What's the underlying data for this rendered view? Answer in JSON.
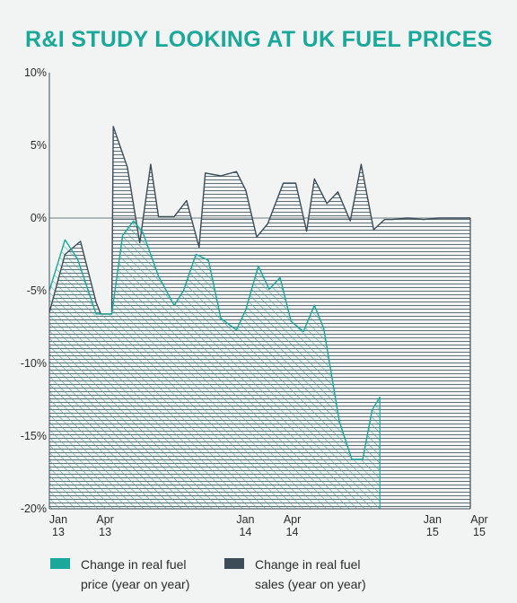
{
  "chart_data": {
    "type": "area",
    "title": "R&I STUDY LOOKING AT UK FUEL PRICES",
    "xlabel": "",
    "ylabel": "",
    "ylim": [
      -20,
      10
    ],
    "y_ticks": [
      10,
      5,
      0,
      -5,
      -10,
      -15,
      -20
    ],
    "y_tick_labels": [
      "10%",
      "5%",
      "0%",
      "-5%",
      "-10%",
      "-15%",
      "-20%"
    ],
    "x_ticks": [
      {
        "index": 0,
        "line1": "Jan",
        "line2": "13"
      },
      {
        "index": 3,
        "line1": "Apr",
        "line2": "13"
      },
      {
        "index": 12,
        "line1": "Jan",
        "line2": "14"
      },
      {
        "index": 15,
        "line1": "Apr",
        "line2": "14"
      },
      {
        "index": 24,
        "line1": "Jan",
        "line2": "15"
      },
      {
        "index": 27,
        "line1": "Apr",
        "line2": "15"
      }
    ],
    "x_count": 28,
    "series": [
      {
        "name": "Change in real fuel sales (year on year)",
        "color": "#3d4d57",
        "fill": "horizontal-lines",
        "points": [
          [
            0,
            -6.5
          ],
          [
            1,
            -2.5
          ],
          [
            2,
            -1.6
          ],
          [
            3,
            -5.8
          ],
          [
            3.3,
            -6.6
          ],
          [
            4,
            -6.6
          ],
          [
            4.1,
            6.3
          ],
          [
            5,
            3.5
          ],
          [
            5.8,
            -1.7
          ],
          [
            6.5,
            3.7
          ],
          [
            7,
            0.1
          ],
          [
            8,
            0.1
          ],
          [
            8.8,
            1.2
          ],
          [
            9.6,
            -2
          ],
          [
            10,
            3.1
          ],
          [
            11,
            2.9
          ],
          [
            12,
            3.2
          ],
          [
            12.6,
            1.9
          ],
          [
            13.3,
            -1.3
          ],
          [
            14,
            -0.4
          ],
          [
            15,
            2.4
          ],
          [
            15.8,
            2.4
          ],
          [
            16.5,
            -0.9
          ],
          [
            17,
            2.7
          ],
          [
            17.8,
            1
          ],
          [
            18.5,
            1.8
          ],
          [
            19.3,
            -0.2
          ],
          [
            20,
            3.7
          ],
          [
            20.8,
            -0.8
          ],
          [
            21.5,
            -0.1
          ],
          [
            22,
            -0.1
          ],
          [
            23,
            0
          ],
          [
            24,
            -0.1
          ],
          [
            25,
            0
          ],
          [
            26,
            0
          ],
          [
            27,
            0
          ]
        ]
      },
      {
        "name": "Change in real fuel price (year on year)",
        "color": "#1aa89a",
        "fill": "diagonal-hatch",
        "points": [
          [
            0,
            -5
          ],
          [
            1,
            -1.5
          ],
          [
            1.8,
            -2.8
          ],
          [
            3,
            -6.6
          ],
          [
            4,
            -6.6
          ],
          [
            4.7,
            -1.2
          ],
          [
            5.4,
            -0.2
          ],
          [
            6,
            -1
          ],
          [
            7,
            -4
          ],
          [
            8,
            -6
          ],
          [
            8.6,
            -5
          ],
          [
            9.4,
            -2.5
          ],
          [
            10.2,
            -2.9
          ],
          [
            11,
            -6.9
          ],
          [
            12,
            -7.7
          ],
          [
            12.6,
            -6.3
          ],
          [
            13.4,
            -3.3
          ],
          [
            14.1,
            -4.9
          ],
          [
            14.8,
            -4.1
          ],
          [
            15.5,
            -7.1
          ],
          [
            16.3,
            -7.8
          ],
          [
            17,
            -6
          ],
          [
            17.6,
            -7.6
          ],
          [
            18.6,
            -14
          ],
          [
            19.4,
            -16.6
          ],
          [
            20.1,
            -16.6
          ],
          [
            20.7,
            -13.2
          ],
          [
            21.2,
            -12.3
          ]
        ]
      }
    ],
    "legend": [
      "Change in real fuel price (year on year)",
      "Change in real fuel sales (year on year)"
    ],
    "legend_position": "bottom",
    "grid": false
  },
  "legend": {
    "item1": {
      "line1": "Change in real fuel",
      "line2": "price (year on year)",
      "color": "#1aa89a"
    },
    "item2": {
      "line1": "Change in real fuel",
      "line2": "sales (year on year)",
      "color": "#3d4d57"
    }
  }
}
